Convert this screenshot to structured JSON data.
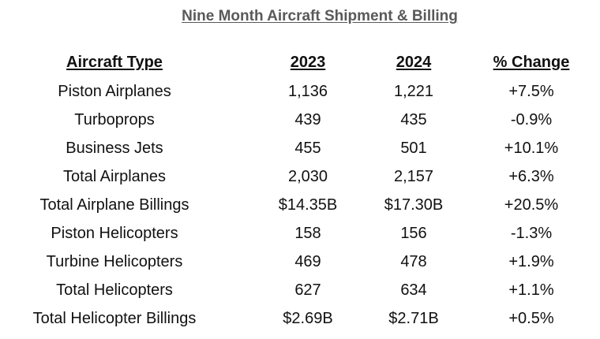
{
  "title": "Nine Month Aircraft Shipment & Billing",
  "headers": [
    "Aircraft Type",
    "2023",
    "2024",
    "% Change"
  ],
  "rows": [
    [
      "Piston Airplanes",
      "1,136",
      "1,221",
      "+7.5%"
    ],
    [
      "Turboprops",
      "439",
      "435",
      "-0.9%"
    ],
    [
      "Business Jets",
      "455",
      "501",
      "+10.1%"
    ],
    [
      "Total Airplanes",
      "2,030",
      "2,157",
      "+6.3%"
    ],
    [
      "Total Airplane Billings",
      "$14.35B",
      "$17.30B",
      "+20.5%"
    ],
    [
      "Piston Helicopters",
      "158",
      "156",
      "-1.3%"
    ],
    [
      "Turbine Helicopters",
      "469",
      "478",
      "+1.9%"
    ],
    [
      "Total Helicopters",
      "627",
      "634",
      "+1.1%"
    ],
    [
      "Total Helicopter Billings",
      "$2.69B",
      "$2.71B",
      "+0.5%"
    ]
  ]
}
